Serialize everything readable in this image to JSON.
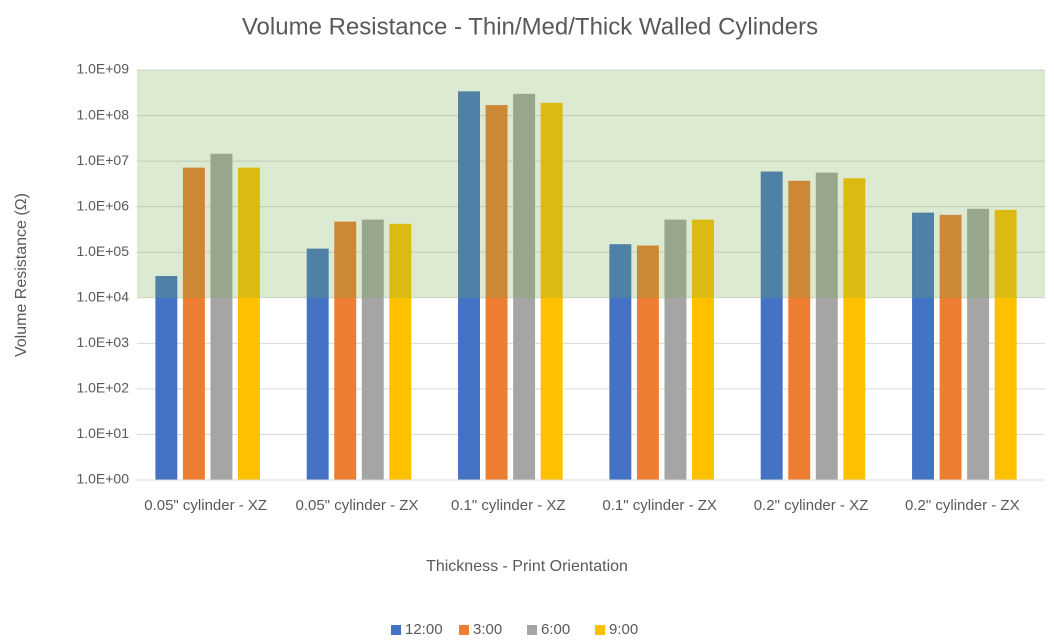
{
  "chart_data": {
    "type": "bar",
    "title": "Volume Resistance - Thin/Med/Thick Walled Cylinders",
    "x_label": "Thickness - Print Orientation",
    "y_label": "Volume Resistance (Ω)",
    "categories": [
      "0.05\" cylinder - XZ",
      "0.05\" cylinder - ZX",
      "0.1\" cylinder - XZ",
      "0.1\" cylinder - ZX",
      "0.2\" cylinder - XZ",
      "0.2\" cylinder - ZX"
    ],
    "series": [
      {
        "name": "12:00",
        "color": "#4472c4",
        "values": [
          30000,
          120000,
          340000000,
          150000,
          5900000,
          740000
        ]
      },
      {
        "name": "3:00",
        "color": "#ed7d31",
        "values": [
          7200000,
          470000,
          170000000,
          140000,
          3700000,
          660000
        ]
      },
      {
        "name": "6:00",
        "color": "#a5a5a5",
        "values": [
          14500000,
          520000,
          300000000,
          520000,
          5600000,
          900000
        ]
      },
      {
        "name": "9:00",
        "color": "#ffc000",
        "values": [
          7200000,
          420000,
          190000000,
          520000,
          4200000,
          850000
        ]
      }
    ],
    "log_scale": true,
    "ylim": [
      1,
      1000000000
    ],
    "yticks": [
      {
        "value": 1,
        "label": "1.0E+00"
      },
      {
        "value": 10,
        "label": "1.0E+01"
      },
      {
        "value": 100,
        "label": "1.0E+02"
      },
      {
        "value": 1000,
        "label": "1.0E+03"
      },
      {
        "value": 10000,
        "label": "1.0E+04"
      },
      {
        "value": 100000,
        "label": "1.0E+05"
      },
      {
        "value": 1000000,
        "label": "1.0E+06"
      },
      {
        "value": 10000000,
        "label": "1.0E+07"
      },
      {
        "value": 100000000,
        "label": "1.0E+08"
      },
      {
        "value": 1000000000,
        "label": "1.0E+09"
      }
    ],
    "grid": true,
    "shaded_range": {
      "range": [
        10000,
        1000000000
      ],
      "color": "#70ad47"
    },
    "legend": "bottom"
  }
}
